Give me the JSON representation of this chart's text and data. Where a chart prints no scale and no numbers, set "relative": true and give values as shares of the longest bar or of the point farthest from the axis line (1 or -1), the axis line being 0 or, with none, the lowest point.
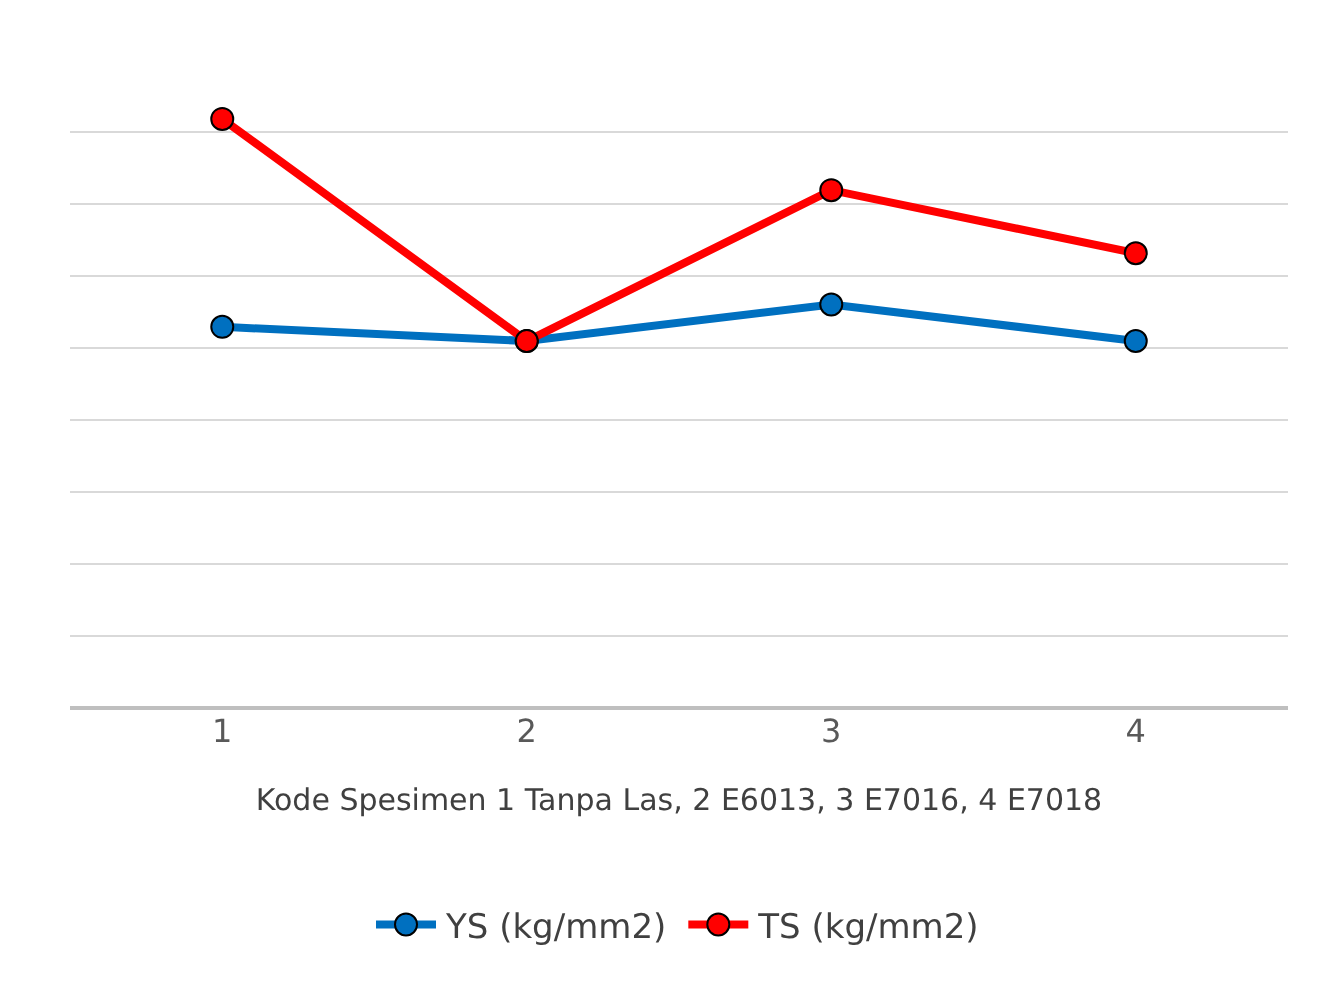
{
  "chart_data": {
    "type": "line",
    "relative": true,
    "categories": [
      "1",
      "2",
      "3",
      "4"
    ],
    "xlabel": "Kode Spesimen 1 Tanpa Las, 2 E6013, 3 E7016, 4 E7018",
    "series": [
      {
        "name": "YS (kg/mm2)",
        "color": "#0070c0",
        "values": [
          0.647,
          0.623,
          0.685,
          0.623
        ]
      },
      {
        "name": "TS (kg/mm2)",
        "color": "#ff0000",
        "values": [
          1,
          0.623,
          0.879,
          0.772
        ]
      }
    ],
    "grid": "y",
    "legend": "bottom",
    "marker": "circle",
    "line_style": "solid"
  }
}
